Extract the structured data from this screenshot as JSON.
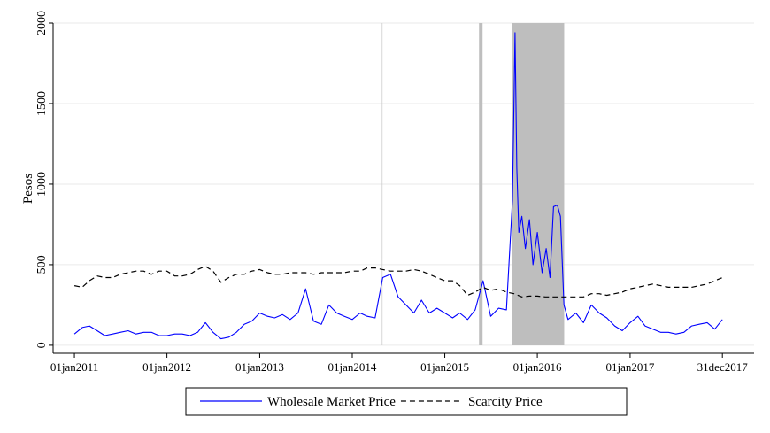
{
  "chart_data": {
    "type": "line",
    "y_label": "Pesos",
    "ylim": [
      -50,
      2000
    ],
    "yticks": [
      0,
      500,
      1000,
      1500,
      2000
    ],
    "grid": true,
    "xlim": [
      "2010-10-09",
      "2018-05-05"
    ],
    "xticks": [
      {
        "value": "2011-01-01",
        "label": "01jan2011"
      },
      {
        "value": "2012-01-01",
        "label": "01jan2012"
      },
      {
        "value": "2013-01-01",
        "label": "01jan2013"
      },
      {
        "value": "2014-01-01",
        "label": "01jan2014"
      },
      {
        "value": "2015-01-01",
        "label": "01jan2015"
      },
      {
        "value": "2016-01-01",
        "label": "01jan2016"
      },
      {
        "value": "2017-01-01",
        "label": "01jan2017"
      },
      {
        "value": "2017-12-31",
        "label": "31dec2017"
      }
    ],
    "shaded_periods": [
      [
        "2014-04-27",
        "2014-04-28"
      ],
      [
        "2015-05-16",
        "2015-05-30"
      ],
      [
        "2015-09-22",
        "2016-04-16"
      ]
    ],
    "shade_color": "#bebebe",
    "legend_position": "bottom",
    "series": [
      {
        "name": "Wholesale Market Price",
        "color": "#0000ff",
        "dashed": false,
        "x": [
          "2011-01-01",
          "2011-02-01",
          "2011-03-01",
          "2011-04-01",
          "2011-05-01",
          "2011-06-01",
          "2011-07-01",
          "2011-08-01",
          "2011-09-01",
          "2011-10-01",
          "2011-11-01",
          "2011-12-01",
          "2012-01-01",
          "2012-02-01",
          "2012-03-01",
          "2012-04-01",
          "2012-05-01",
          "2012-06-01",
          "2012-07-01",
          "2012-08-01",
          "2012-09-01",
          "2012-10-01",
          "2012-11-01",
          "2012-12-01",
          "2013-01-01",
          "2013-02-01",
          "2013-03-01",
          "2013-04-01",
          "2013-05-01",
          "2013-06-01",
          "2013-07-01",
          "2013-08-01",
          "2013-09-01",
          "2013-10-01",
          "2013-11-01",
          "2013-12-01",
          "2014-01-01",
          "2014-02-01",
          "2014-03-01",
          "2014-04-01",
          "2014-05-01",
          "2014-06-01",
          "2014-07-01",
          "2014-08-01",
          "2014-09-01",
          "2014-10-01",
          "2014-11-01",
          "2014-12-01",
          "2015-01-01",
          "2015-02-01",
          "2015-03-01",
          "2015-04-01",
          "2015-05-01",
          "2015-06-01",
          "2015-07-01",
          "2015-08-01",
          "2015-09-01",
          "2015-09-25",
          "2015-10-05",
          "2015-10-12",
          "2015-10-20",
          "2015-11-01",
          "2015-11-15",
          "2015-12-01",
          "2015-12-15",
          "2016-01-01",
          "2016-01-20",
          "2016-02-05",
          "2016-02-20",
          "2016-03-05",
          "2016-03-20",
          "2016-04-01",
          "2016-04-15",
          "2016-05-01",
          "2016-06-01",
          "2016-07-01",
          "2016-08-01",
          "2016-09-01",
          "2016-10-01",
          "2016-11-01",
          "2016-12-01",
          "2017-01-01",
          "2017-02-01",
          "2017-03-01",
          "2017-04-01",
          "2017-05-01",
          "2017-06-01",
          "2017-07-01",
          "2017-08-01",
          "2017-09-01",
          "2017-10-01",
          "2017-11-01",
          "2017-12-01",
          "2017-12-31"
        ],
        "values": [
          70,
          110,
          120,
          90,
          60,
          70,
          80,
          90,
          70,
          80,
          80,
          60,
          60,
          70,
          70,
          60,
          80,
          140,
          80,
          40,
          50,
          80,
          130,
          150,
          200,
          180,
          170,
          190,
          160,
          200,
          350,
          150,
          130,
          250,
          200,
          180,
          160,
          200,
          180,
          170,
          420,
          440,
          300,
          250,
          200,
          280,
          200,
          230,
          200,
          170,
          200,
          160,
          220,
          400,
          180,
          230,
          220,
          900,
          1940,
          1100,
          700,
          800,
          600,
          780,
          500,
          700,
          450,
          600,
          420,
          860,
          870,
          800,
          250,
          160,
          200,
          140,
          250,
          200,
          170,
          120,
          90,
          140,
          180,
          120,
          100,
          80,
          80,
          70,
          80,
          120,
          130,
          140,
          100,
          160
        ]
      },
      {
        "name": "Scarcity Price",
        "color": "#000000",
        "dashed": true,
        "x": [
          "2011-01-01",
          "2011-02-01",
          "2011-03-01",
          "2011-04-01",
          "2011-05-01",
          "2011-06-01",
          "2011-07-01",
          "2011-08-01",
          "2011-09-01",
          "2011-10-01",
          "2011-11-01",
          "2011-12-01",
          "2012-01-01",
          "2012-02-01",
          "2012-03-01",
          "2012-04-01",
          "2012-05-01",
          "2012-06-01",
          "2012-07-01",
          "2012-08-01",
          "2012-09-01",
          "2012-10-01",
          "2012-11-01",
          "2012-12-01",
          "2013-01-01",
          "2013-02-01",
          "2013-03-01",
          "2013-04-01",
          "2013-05-01",
          "2013-06-01",
          "2013-07-01",
          "2013-08-01",
          "2013-09-01",
          "2013-10-01",
          "2013-11-01",
          "2013-12-01",
          "2014-01-01",
          "2014-02-01",
          "2014-03-01",
          "2014-04-01",
          "2014-05-01",
          "2014-06-01",
          "2014-07-01",
          "2014-08-01",
          "2014-09-01",
          "2014-10-01",
          "2014-11-01",
          "2014-12-01",
          "2015-01-01",
          "2015-02-01",
          "2015-03-01",
          "2015-04-01",
          "2015-05-01",
          "2015-06-01",
          "2015-07-01",
          "2015-08-01",
          "2015-09-01",
          "2015-10-01",
          "2015-11-01",
          "2015-12-01",
          "2016-01-01",
          "2016-02-01",
          "2016-03-01",
          "2016-04-01",
          "2016-05-01",
          "2016-06-01",
          "2016-07-01",
          "2016-08-01",
          "2016-09-01",
          "2016-10-01",
          "2016-11-01",
          "2016-12-01",
          "2017-01-01",
          "2017-02-01",
          "2017-03-01",
          "2017-04-01",
          "2017-05-01",
          "2017-06-01",
          "2017-07-01",
          "2017-08-01",
          "2017-09-01",
          "2017-10-01",
          "2017-11-01",
          "2017-12-01",
          "2017-12-31"
        ],
        "values": [
          370,
          360,
          400,
          430,
          420,
          420,
          440,
          450,
          460,
          460,
          440,
          460,
          460,
          430,
          430,
          440,
          470,
          490,
          460,
          390,
          420,
          440,
          440,
          460,
          470,
          450,
          440,
          440,
          450,
          450,
          450,
          440,
          450,
          450,
          450,
          450,
          460,
          460,
          480,
          480,
          470,
          460,
          460,
          460,
          470,
          460,
          440,
          420,
          400,
          400,
          370,
          310,
          330,
          360,
          340,
          350,
          330,
          320,
          300,
          305,
          305,
          300,
          300,
          300,
          300,
          300,
          300,
          320,
          320,
          310,
          320,
          330,
          350,
          360,
          370,
          380,
          370,
          360,
          360,
          360,
          360,
          370,
          380,
          400,
          420
        ]
      }
    ]
  }
}
